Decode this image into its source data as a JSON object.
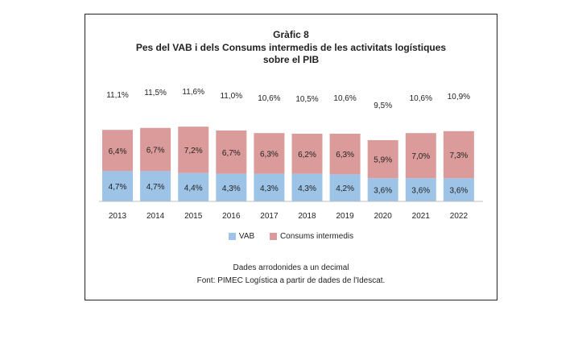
{
  "chart_data": {
    "type": "bar",
    "stacked": true,
    "title": "Gràfic 8",
    "subtitle": "Pes del VAB i dels Consums intermedis de les activitats logístiques sobre el PIB",
    "subtitle_line1": "Pes del VAB i dels Consums intermedis de les activitats logístiques",
    "subtitle_line2": "sobre el PIB",
    "categories": [
      "2013",
      "2014",
      "2015",
      "2016",
      "2017",
      "2018",
      "2019",
      "2020",
      "2021",
      "2022"
    ],
    "series": [
      {
        "name": "VAB",
        "color": "#9dc3e6",
        "values": [
          4.7,
          4.7,
          4.4,
          4.3,
          4.3,
          4.3,
          4.2,
          3.6,
          3.6,
          3.6
        ],
        "labels": [
          "4,7%",
          "4,7%",
          "4,4%",
          "4,3%",
          "4,3%",
          "4,3%",
          "4,2%",
          "3,6%",
          "3,6%",
          "3,6%"
        ]
      },
      {
        "name": "Consums intermedis",
        "color": "#dc9b9b",
        "values": [
          6.4,
          6.7,
          7.2,
          6.7,
          6.3,
          6.2,
          6.3,
          5.9,
          7.0,
          7.3
        ],
        "labels": [
          "6,4%",
          "6,7%",
          "7,2%",
          "6,7%",
          "6,3%",
          "6,2%",
          "6,3%",
          "5,9%",
          "7,0%",
          "7,3%"
        ]
      }
    ],
    "totals": [
      11.1,
      11.5,
      11.6,
      11.0,
      10.6,
      10.5,
      10.6,
      9.5,
      10.6,
      10.9
    ],
    "total_labels": [
      "11,1%",
      "11,5%",
      "11,6%",
      "11,0%",
      "10,6%",
      "10,5%",
      "10,6%",
      "9,5%",
      "10,6%",
      "10,9%"
    ],
    "xlabel": "",
    "ylabel": "",
    "ylim": [
      0,
      14
    ],
    "grid": false,
    "legend_position": "bottom"
  },
  "footnotes": {
    "rounding": "Dades arrodonides a un decimal",
    "source": "Font: PIMEC Logística a partir de dades de l'Idescat."
  }
}
